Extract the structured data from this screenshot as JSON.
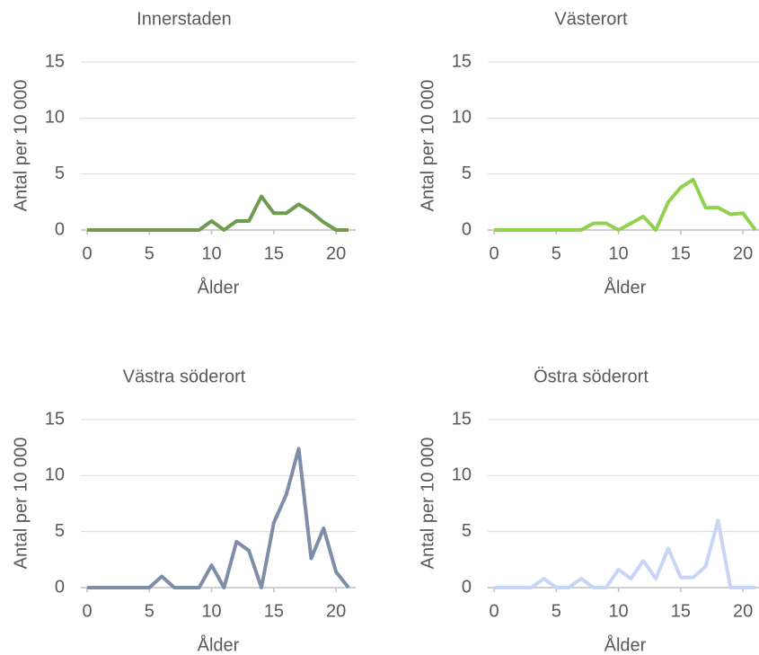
{
  "chart_data": [
    {
      "type": "line",
      "title": "Innerstaden",
      "xlabel": "Ålder",
      "ylabel": "Antal per 10 000",
      "x": [
        0,
        1,
        2,
        3,
        4,
        5,
        6,
        7,
        8,
        9,
        10,
        11,
        12,
        13,
        14,
        15,
        16,
        17,
        18,
        19,
        20,
        21
      ],
      "values": [
        0,
        0,
        0,
        0,
        0,
        0,
        0,
        0,
        0,
        0,
        0.8,
        0,
        0.8,
        0.8,
        3.0,
        1.5,
        1.5,
        2.3,
        1.6,
        0.7,
        0,
        0
      ],
      "color": "#6e9b4e",
      "xlim": [
        0,
        21
      ],
      "xticks": [
        0,
        5,
        10,
        15,
        20
      ],
      "ylim": [
        0,
        15
      ],
      "yticks": [
        0,
        5,
        10,
        15
      ],
      "grid": true
    },
    {
      "type": "line",
      "title": "Västerort",
      "xlabel": "Ålder",
      "ylabel": "Antal per 10 000",
      "x": [
        0,
        1,
        2,
        3,
        4,
        5,
        6,
        7,
        8,
        9,
        10,
        11,
        12,
        13,
        14,
        15,
        16,
        17,
        18,
        19,
        20,
        21
      ],
      "values": [
        0,
        0,
        0,
        0,
        0,
        0,
        0,
        0,
        0.6,
        0.6,
        0,
        0.6,
        1.2,
        0,
        2.5,
        3.8,
        4.5,
        2.0,
        2.0,
        1.4,
        1.5,
        0
      ],
      "color": "#92d050",
      "xlim": [
        0,
        21
      ],
      "xticks": [
        0,
        5,
        10,
        15,
        20
      ],
      "ylim": [
        0,
        15
      ],
      "yticks": [
        0,
        5,
        10,
        15
      ],
      "grid": true
    },
    {
      "type": "line",
      "title": "Västra söderort",
      "xlabel": "Ålder",
      "ylabel": "Antal per 10 000",
      "x": [
        0,
        1,
        2,
        3,
        4,
        5,
        6,
        7,
        8,
        9,
        10,
        11,
        12,
        13,
        14,
        15,
        16,
        17,
        18,
        19,
        20,
        21
      ],
      "values": [
        0,
        0,
        0,
        0,
        0,
        0,
        1.0,
        0,
        0,
        0,
        2.0,
        0,
        4.1,
        3.3,
        0,
        5.8,
        8.3,
        12.4,
        2.6,
        5.3,
        1.4,
        0
      ],
      "color": "#7f8ea8",
      "xlim": [
        0,
        21
      ],
      "xticks": [
        0,
        5,
        10,
        15,
        20
      ],
      "ylim": [
        0,
        15
      ],
      "yticks": [
        0,
        5,
        10,
        15
      ],
      "grid": true
    },
    {
      "type": "line",
      "title": "Östra söderort",
      "xlabel": "Ålder",
      "ylabel": "Antal per 10 000",
      "x": [
        0,
        1,
        2,
        3,
        4,
        5,
        6,
        7,
        8,
        9,
        10,
        11,
        12,
        13,
        14,
        15,
        16,
        17,
        18,
        19,
        20,
        21
      ],
      "values": [
        0,
        0,
        0,
        0,
        0.8,
        0,
        0,
        0.8,
        0,
        0,
        1.6,
        0.8,
        2.4,
        0.8,
        3.5,
        0.9,
        0.9,
        1.9,
        6.0,
        0,
        0,
        0
      ],
      "color": "#c6d6f4",
      "xlim": [
        0,
        21
      ],
      "xticks": [
        0,
        5,
        10,
        15,
        20
      ],
      "ylim": [
        0,
        15
      ],
      "yticks": [
        0,
        5,
        10,
        15
      ],
      "grid": true
    }
  ]
}
